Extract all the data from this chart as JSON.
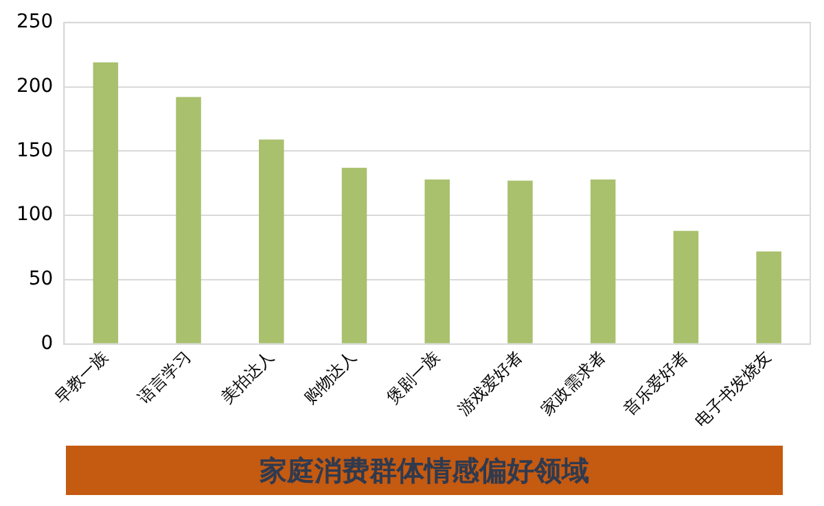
{
  "chart_data": {
    "type": "bar",
    "title": "家庭消费群体情感偏好领域",
    "categories": [
      "早教一族",
      "语言学习",
      "美拍达人",
      "购物达人",
      "煲剧一族",
      "游戏爱好者",
      "家政需求者",
      "音乐爱好者",
      "电子书发烧友"
    ],
    "values": [
      219,
      192,
      159,
      137,
      128,
      127,
      128,
      88,
      72
    ],
    "color": "#a9c06d",
    "ylim": [
      0,
      250
    ],
    "yticks": [
      0,
      50,
      100,
      150,
      200,
      250
    ],
    "grid": "y",
    "legend": false
  }
}
